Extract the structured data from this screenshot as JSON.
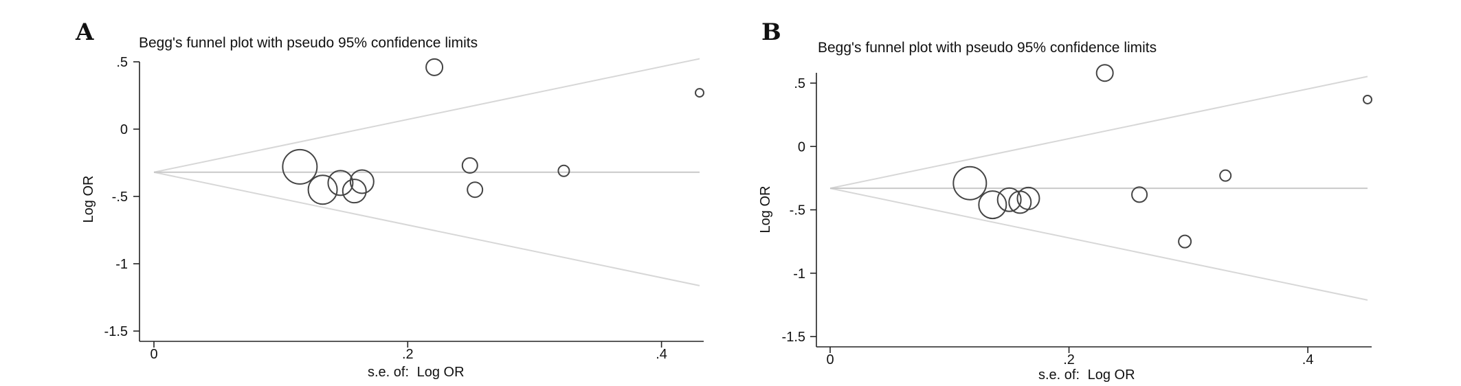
{
  "chart_data": [
    {
      "type": "scatter",
      "panel": "A",
      "title": "Begg's funnel plot with pseudo 95% confidence limits",
      "xlabel_prefix": "s.e. of:",
      "xlabel": "Log OR",
      "ylabel": "Log OR",
      "xlim": [
        0,
        0.43
      ],
      "ylim": [
        -1.5,
        0.5
      ],
      "xticks": [
        "0",
        ".2",
        ".4"
      ],
      "xtick_values": [
        0,
        0.2,
        0.4
      ],
      "yticks": [
        ".5",
        "0",
        "-.5",
        "-1",
        "-1.5"
      ],
      "ytick_values": [
        0.5,
        0,
        -0.5,
        -1,
        -1.5
      ],
      "pooled_log_or": -0.32,
      "points": [
        {
          "x": 0.115,
          "y": -0.28,
          "r": 25
        },
        {
          "x": 0.133,
          "y": -0.45,
          "r": 21
        },
        {
          "x": 0.147,
          "y": -0.4,
          "r": 18
        },
        {
          "x": 0.158,
          "y": -0.46,
          "r": 17
        },
        {
          "x": 0.164,
          "y": -0.39,
          "r": 17
        },
        {
          "x": 0.221,
          "y": 0.46,
          "r": 12
        },
        {
          "x": 0.249,
          "y": -0.27,
          "r": 11
        },
        {
          "x": 0.253,
          "y": -0.45,
          "r": 11
        },
        {
          "x": 0.323,
          "y": -0.31,
          "r": 8
        },
        {
          "x": 0.43,
          "y": 0.27,
          "r": 6
        }
      ]
    },
    {
      "type": "scatter",
      "panel": "B",
      "title": "Begg's funnel plot with pseudo 95% confidence limits",
      "xlabel_prefix": "s.e. of:",
      "xlabel": "Log OR",
      "ylabel": "Log OR",
      "xlim": [
        0,
        0.45
      ],
      "ylim": [
        -1.5,
        0.5
      ],
      "xticks": [
        "0",
        ".2",
        ".4"
      ],
      "xtick_values": [
        0,
        0.2,
        0.4
      ],
      "yticks": [
        ".5",
        "0",
        "-.5",
        "-1",
        "-1.5"
      ],
      "ytick_values": [
        0.5,
        0,
        -0.5,
        -1,
        -1.5
      ],
      "pooled_log_or": -0.33,
      "points": [
        {
          "x": 0.117,
          "y": -0.29,
          "r": 24
        },
        {
          "x": 0.136,
          "y": -0.46,
          "r": 20
        },
        {
          "x": 0.15,
          "y": -0.42,
          "r": 17
        },
        {
          "x": 0.159,
          "y": -0.44,
          "r": 16
        },
        {
          "x": 0.166,
          "y": -0.41,
          "r": 16
        },
        {
          "x": 0.23,
          "y": 0.58,
          "r": 12
        },
        {
          "x": 0.259,
          "y": -0.38,
          "r": 11
        },
        {
          "x": 0.297,
          "y": -0.75,
          "r": 9
        },
        {
          "x": 0.331,
          "y": -0.23,
          "r": 8
        },
        {
          "x": 0.45,
          "y": 0.37,
          "r": 6
        }
      ]
    }
  ]
}
